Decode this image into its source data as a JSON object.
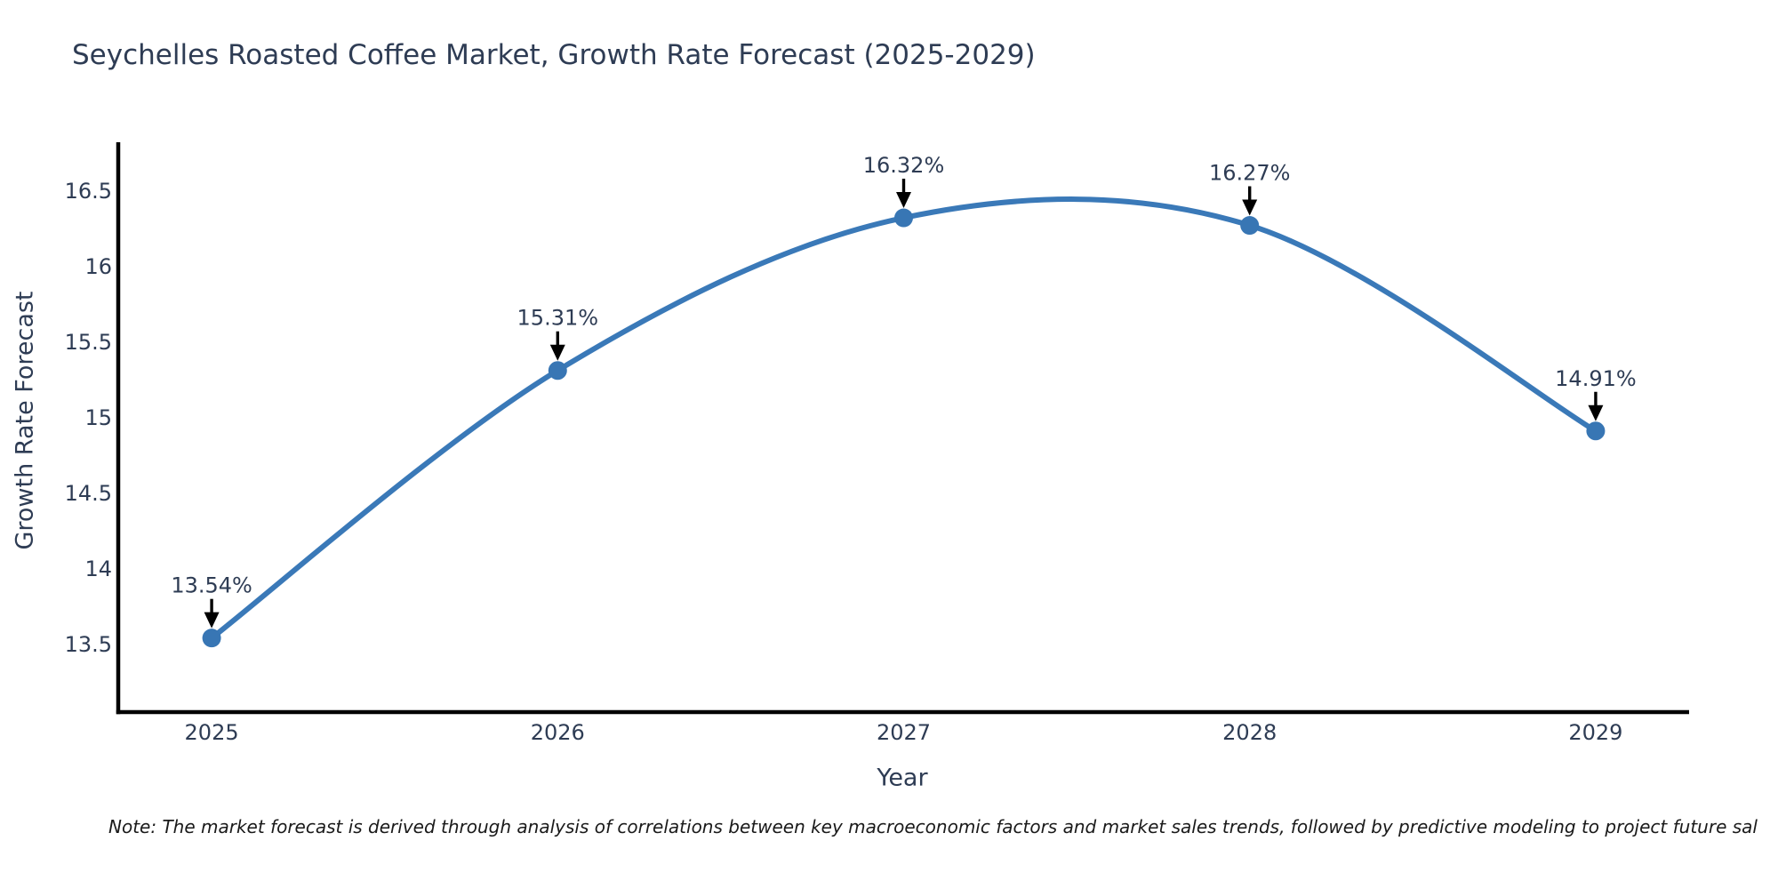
{
  "chart_data": {
    "type": "line",
    "title": "Seychelles Roasted Coffee Market, Growth Rate Forecast (2025-2029)",
    "xlabel": "Year",
    "ylabel": "Growth Rate Forecast",
    "x": [
      2025,
      2026,
      2027,
      2028,
      2029
    ],
    "y": [
      13.54,
      15.31,
      16.32,
      16.27,
      14.91
    ],
    "point_labels": [
      "13.54%",
      "15.31%",
      "16.32%",
      "16.27%",
      "14.91%"
    ],
    "x_ticks": [
      2025,
      2026,
      2027,
      2028,
      2029
    ],
    "y_ticks": [
      13.5,
      14,
      14.5,
      15,
      15.5,
      16,
      16.5
    ],
    "xlim": [
      2024.73,
      2029.27
    ],
    "ylim": [
      13.05,
      16.82
    ],
    "line_shape": "spline",
    "grid": false,
    "legend": "none",
    "colors": {
      "line": "#3a79b8",
      "marker": "#3876b4",
      "axis": "#000000",
      "text": "#2e3c54",
      "arrow": "#000000",
      "note": "#1a1a1a",
      "background": "#ffffff"
    }
  },
  "note": "Note: The market forecast is derived through analysis of correlations between key macroeconomic factors and market sales trends, followed by predictive modeling to project future sal"
}
